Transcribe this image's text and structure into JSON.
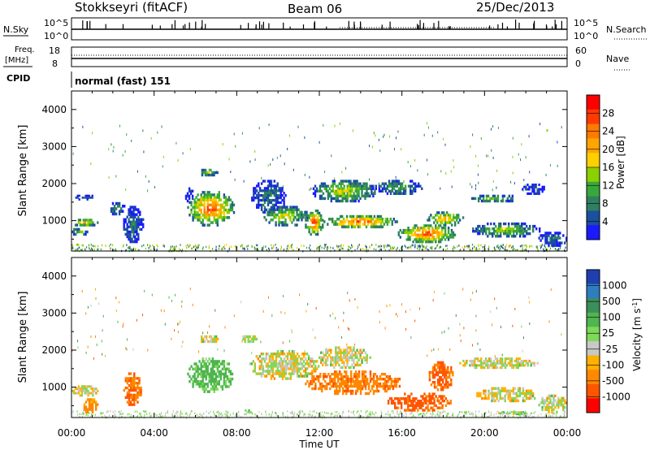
{
  "header": {
    "radar": "Stokkseyri (fitACF)",
    "beam": "Beam 06",
    "date": "25/Dec/2013"
  },
  "panels": {
    "nsky": {
      "label": "N.Sky",
      "left_ticks": [
        "10^5",
        "10^0"
      ],
      "right_ticks": [
        "10^5",
        "10^0"
      ],
      "right_label": "N.Search"
    },
    "freq": {
      "label_line1": "Freq.",
      "label_line2": "[MHz]",
      "left_ticks": [
        "18",
        "8"
      ],
      "right_ticks": [
        "60",
        "0"
      ],
      "right_label": "Nave"
    },
    "cpid": {
      "label": "CPID",
      "text": "normal (fast) 151"
    }
  },
  "colorbars": {
    "power": {
      "label": "Power [dB]",
      "ticks": [
        "28",
        "24",
        "20",
        "16",
        "12",
        "8",
        "4"
      ],
      "colors": [
        "#ff0000",
        "#ff3a00",
        "#ff7a00",
        "#ffa500",
        "#ffd000",
        "#8bd000",
        "#39a83c",
        "#2f8060",
        "#1b4fa0",
        "#1a1aff"
      ]
    },
    "velocity": {
      "label": "Velocity [m s",
      "label_sup": "-1",
      "label_close": "]",
      "ticks": [
        "1000",
        "500",
        "100",
        "25",
        "-25",
        "-100",
        "-500",
        "-1000"
      ],
      "colors": [
        "#1f3fb0",
        "#2e7dbf",
        "#3b8f5a",
        "#4fb54f",
        "#7ed957",
        "#c8c8c4",
        "#ffb000",
        "#ff8800",
        "#ff5500",
        "#ff0000"
      ]
    }
  },
  "chart_data": [
    {
      "type": "heatmap",
      "name": "power",
      "ylabel": "Slant Range [km]",
      "yticks": [
        1000,
        2000,
        3000,
        4000
      ],
      "ylim": [
        180,
        4500
      ],
      "xlim": [
        0,
        24
      ],
      "colorbar": "Power [dB]",
      "blobs": [
        {
          "t": [
            0.0,
            1.3
          ],
          "r": [
            850,
            1050
          ],
          "v": 22
        },
        {
          "t": [
            0.0,
            0.8
          ],
          "r": [
            600,
            800
          ],
          "v": 14
        },
        {
          "t": [
            0.1,
            1.2
          ],
          "r": [
            1550,
            1700
          ],
          "v": 6
        },
        {
          "t": [
            1.8,
            2.6
          ],
          "r": [
            1150,
            1500
          ],
          "v": 12
        },
        {
          "t": [
            2.5,
            3.5
          ],
          "r": [
            400,
            1400
          ],
          "v": 8
        },
        {
          "t": [
            5.6,
            7.9
          ],
          "r": [
            850,
            1800
          ],
          "v": 28
        },
        {
          "t": [
            5.5,
            5.9
          ],
          "r": [
            1500,
            1900
          ],
          "v": 6
        },
        {
          "t": [
            6.2,
            7.1
          ],
          "r": [
            2200,
            2400
          ],
          "v": 16
        },
        {
          "t": [
            8.7,
            10.4
          ],
          "r": [
            1200,
            2100
          ],
          "v": 8
        },
        {
          "t": [
            9.3,
            11.5
          ],
          "r": [
            850,
            1400
          ],
          "v": 18
        },
        {
          "t": [
            11.3,
            12.2
          ],
          "r": [
            600,
            1300
          ],
          "v": 28
        },
        {
          "t": [
            11.6,
            14.8
          ],
          "r": [
            1500,
            2100
          ],
          "v": 18
        },
        {
          "t": [
            12.2,
            15.8
          ],
          "r": [
            800,
            1150
          ],
          "v": 28
        },
        {
          "t": [
            14.7,
            17.0
          ],
          "r": [
            1700,
            2100
          ],
          "v": 12
        },
        {
          "t": [
            15.8,
            18.6
          ],
          "r": [
            400,
            900
          ],
          "v": 28
        },
        {
          "t": [
            17.2,
            19.0
          ],
          "r": [
            850,
            1250
          ],
          "v": 22
        },
        {
          "t": [
            19.2,
            21.7
          ],
          "r": [
            1500,
            1700
          ],
          "v": 14
        },
        {
          "t": [
            19.4,
            22.7
          ],
          "r": [
            550,
            950
          ],
          "v": 16
        },
        {
          "t": [
            22.6,
            24.0
          ],
          "r": [
            300,
            700
          ],
          "v": 8
        },
        {
          "t": [
            21.8,
            23.0
          ],
          "r": [
            1700,
            2000
          ],
          "v": 6
        }
      ]
    },
    {
      "type": "heatmap",
      "name": "velocity",
      "xlabel": "Time UT",
      "ylabel": "Slant Range [km]",
      "xticks": [
        "00:00",
        "04:00",
        "08:00",
        "12:00",
        "16:00",
        "20:00",
        "00:00"
      ],
      "yticks": [
        1000,
        2000,
        3000,
        4000
      ],
      "ylim": [
        180,
        4500
      ],
      "xlim": [
        0,
        24
      ],
      "colorbar": "Velocity [m s-1]",
      "blobs": [
        {
          "t": [
            0.0,
            1.3
          ],
          "r": [
            750,
            1050
          ],
          "v": 0
        },
        {
          "t": [
            0.5,
            1.3
          ],
          "r": [
            300,
            700
          ],
          "v": -150
        },
        {
          "t": [
            2.5,
            3.4
          ],
          "r": [
            500,
            1400
          ],
          "v": -300
        },
        {
          "t": [
            5.6,
            7.9
          ],
          "r": [
            850,
            1800
          ],
          "v": 150
        },
        {
          "t": [
            6.1,
            7.2
          ],
          "r": [
            2200,
            2400
          ],
          "v": 0
        },
        {
          "t": [
            8.6,
            12.0
          ],
          "r": [
            1200,
            2000
          ],
          "v": 0
        },
        {
          "t": [
            11.3,
            16.0
          ],
          "r": [
            800,
            1450
          ],
          "v": -250
        },
        {
          "t": [
            11.8,
            14.5
          ],
          "r": [
            1500,
            2100
          ],
          "v": 0
        },
        {
          "t": [
            15.3,
            18.4
          ],
          "r": [
            350,
            850
          ],
          "v": -350
        },
        {
          "t": [
            17.3,
            18.5
          ],
          "r": [
            900,
            1700
          ],
          "v": -350
        },
        {
          "t": [
            18.7,
            22.6
          ],
          "r": [
            1500,
            1800
          ],
          "v": 0
        },
        {
          "t": [
            19.6,
            22.7
          ],
          "r": [
            600,
            1000
          ],
          "v": 0
        },
        {
          "t": [
            20.5,
            22.3
          ],
          "r": [
            250,
            350
          ],
          "v": 60
        },
        {
          "t": [
            22.6,
            24.0
          ],
          "r": [
            300,
            800
          ],
          "v": 0
        },
        {
          "t": [
            8.2,
            9.0
          ],
          "r": [
            2200,
            2400
          ],
          "v": 0
        },
        {
          "t": [
            8.3,
            8.8
          ],
          "r": [
            250,
            400
          ],
          "v": 60
        }
      ]
    }
  ]
}
